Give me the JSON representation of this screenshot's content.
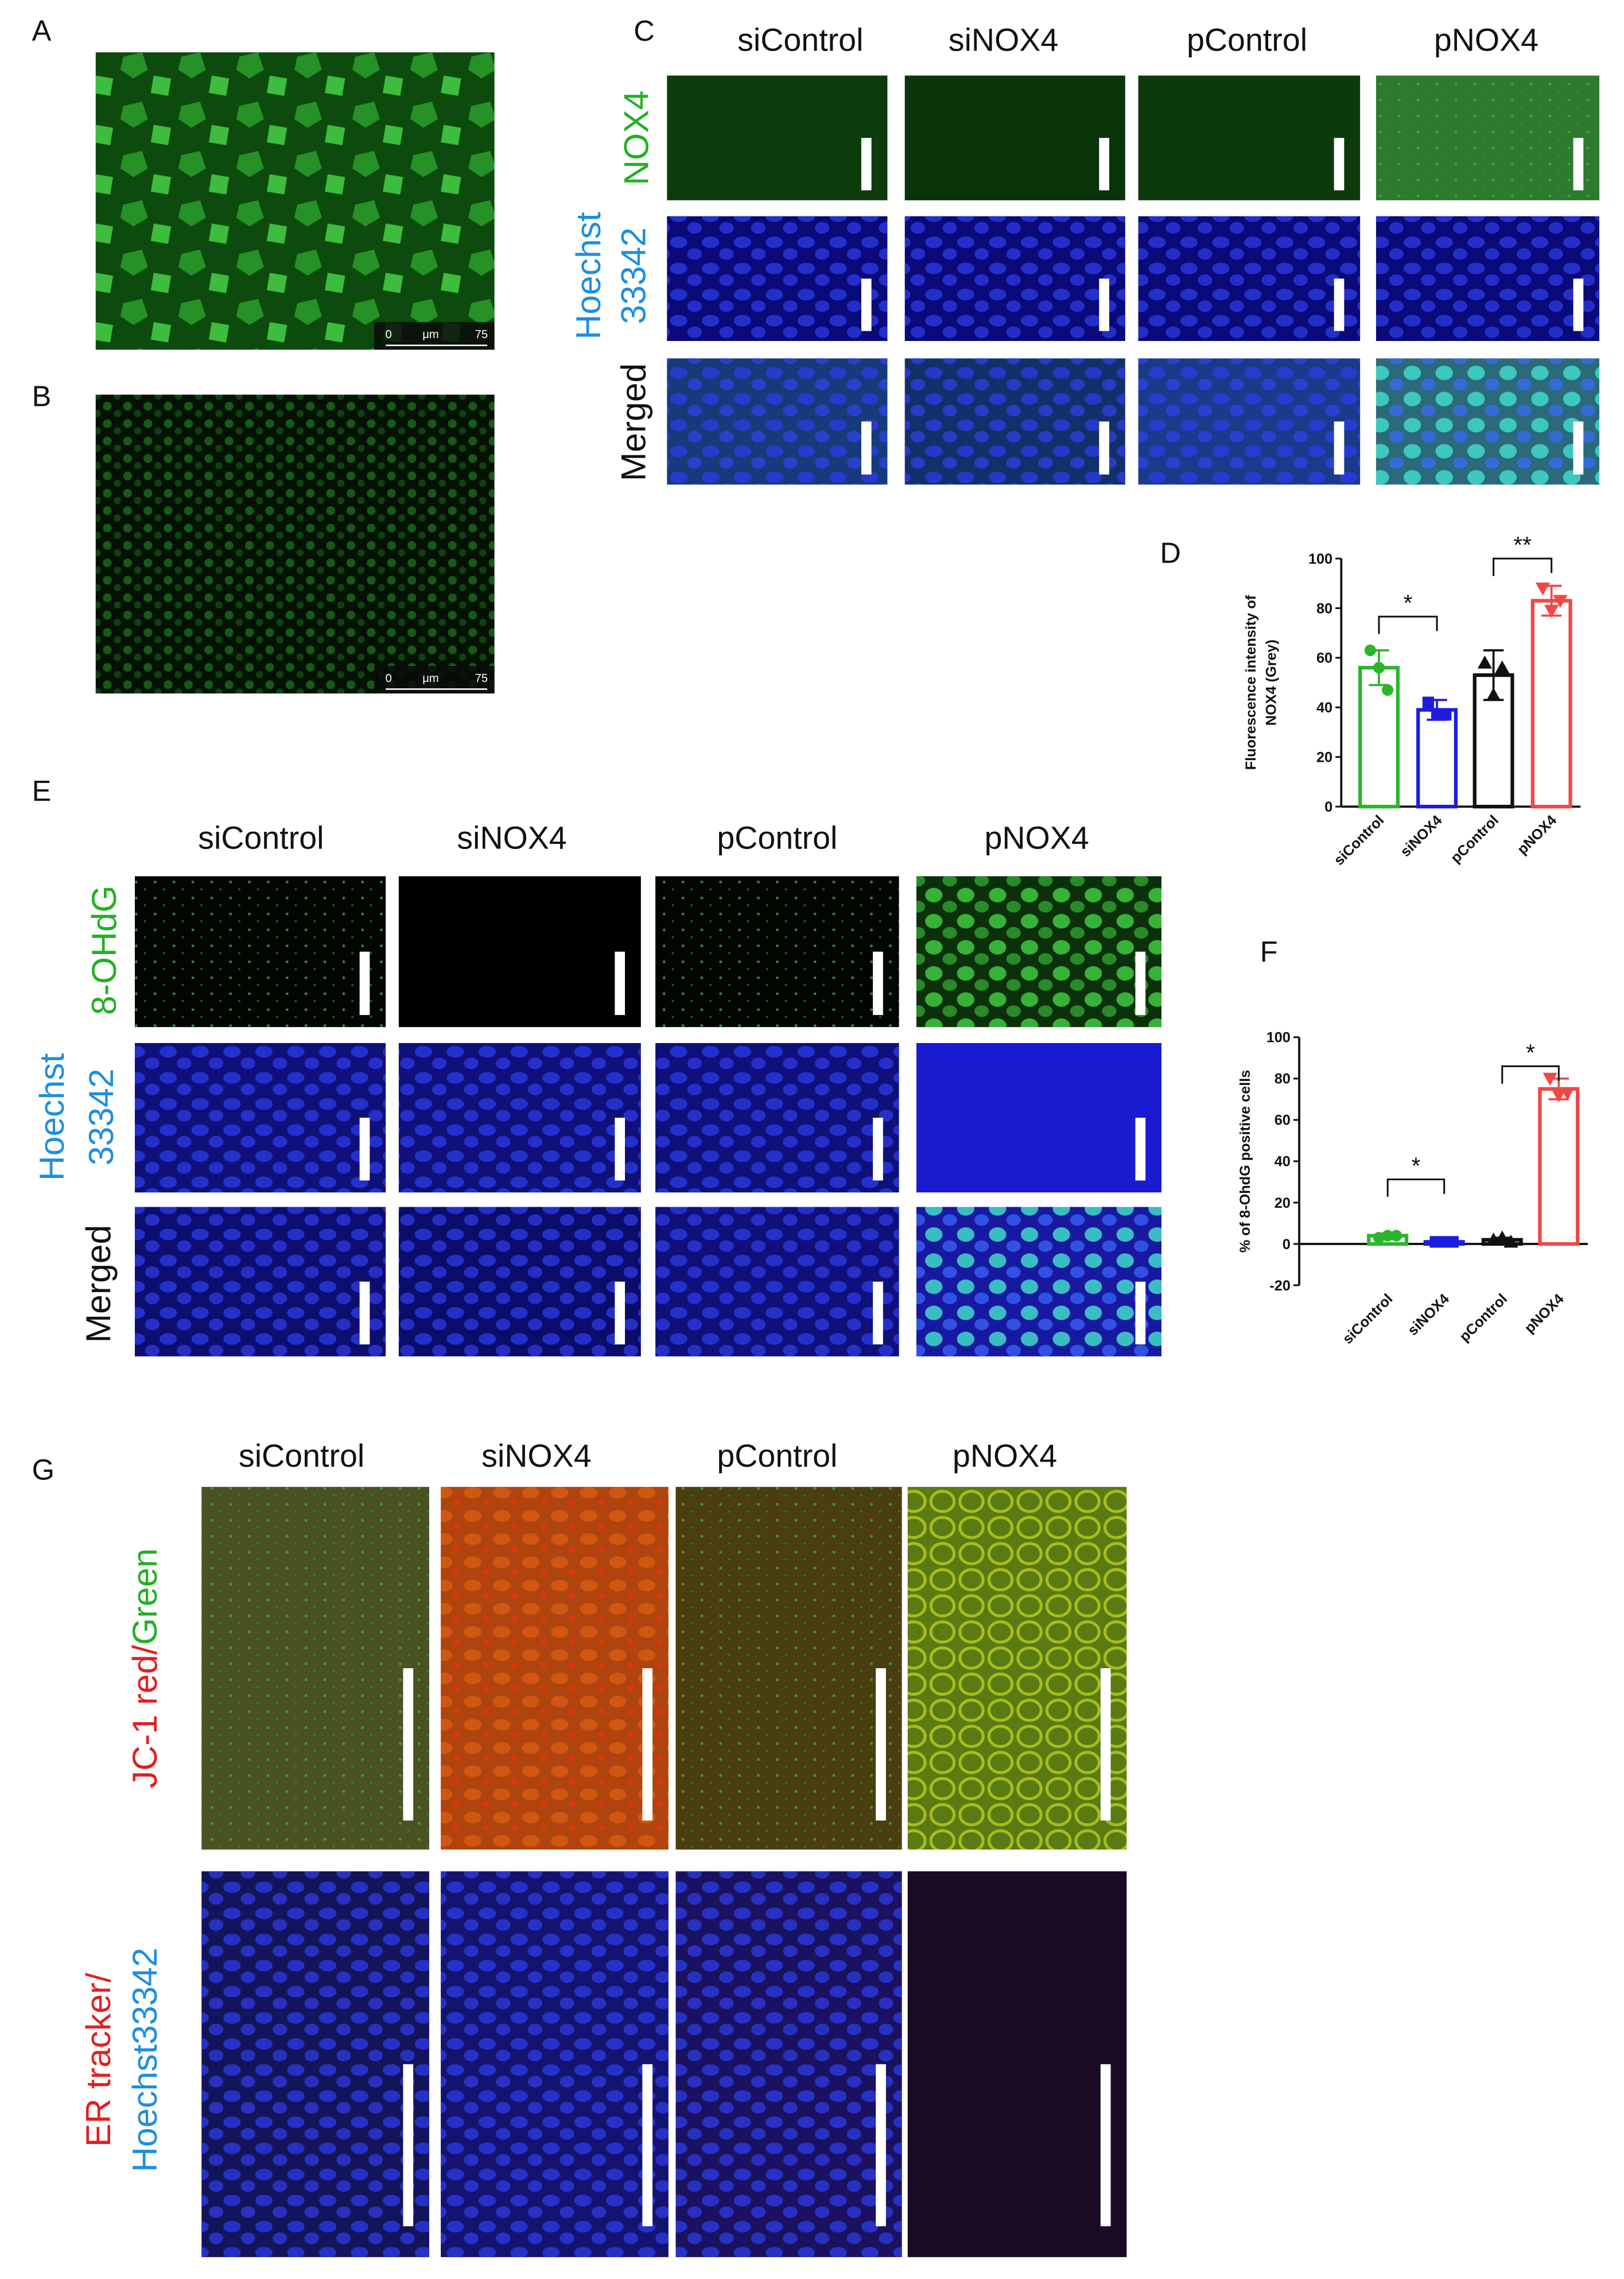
{
  "figure": {
    "panel_letters": [
      "A",
      "B",
      "C",
      "D",
      "E",
      "F",
      "G"
    ],
    "panel_a": {
      "scale_label": [
        "0",
        "μm",
        "75"
      ]
    },
    "panel_b": {
      "scale_label": [
        "0",
        "μm",
        "75"
      ]
    },
    "panel_c": {
      "columns": [
        "siControl",
        "siNOX4",
        "pControl",
        "pNOX4"
      ],
      "rows": [
        [
          "NOX4"
        ],
        [
          "Hoechst",
          "33342"
        ],
        [
          "Merged"
        ]
      ]
    },
    "panel_e": {
      "columns": [
        "siControl",
        "siNOX4",
        "pControl",
        "pNOX4"
      ],
      "rows": [
        [
          "8-OHdG"
        ],
        [
          "Hoechst",
          "33342"
        ],
        [
          "Merged"
        ]
      ]
    },
    "panel_g": {
      "columns": [
        "siControl",
        "siNOX4",
        "pControl",
        "pNOX4"
      ],
      "rows": [
        [
          "JC-1 red/",
          "Green"
        ],
        [
          "ER tracker/",
          "Hoechst33342"
        ]
      ]
    }
  },
  "chart_data": [
    {
      "type": "bar",
      "ylabel": [
        "Fluorescence intensity of",
        "NOX4 (Grey)"
      ],
      "categories": [
        "siControl",
        "siNOX4",
        "pControl",
        "pNOX4"
      ],
      "values": [
        56,
        39,
        53,
        83
      ],
      "errors": [
        7,
        4,
        10,
        6
      ],
      "points": [
        [
          63,
          56,
          47
        ],
        [
          42,
          37,
          37
        ],
        [
          58,
          45,
          56
        ],
        [
          88,
          79,
          83
        ]
      ],
      "markers": [
        "circle",
        "square",
        "triangle-up",
        "triangle-down"
      ],
      "colors": [
        "#2cb52c",
        "#1c1ce0",
        "#111111",
        "#f04848"
      ],
      "annotations": [
        "*",
        "**"
      ],
      "ylim": [
        0,
        100
      ],
      "yticks": [
        0,
        20,
        40,
        60,
        80,
        100
      ]
    },
    {
      "type": "bar",
      "ylabel": "% of 8-OhdG positive cells",
      "categories": [
        "siControl",
        "siNOX4",
        "pControl",
        "pNOX4"
      ],
      "values": [
        4,
        1,
        2,
        75
      ],
      "errors": [
        1,
        1,
        1,
        5
      ],
      "points": [
        [
          3,
          4,
          4
        ],
        [
          1,
          1,
          1
        ],
        [
          2,
          3,
          1
        ],
        [
          80,
          72,
          73
        ]
      ],
      "markers": [
        "circle",
        "square",
        "triangle-up",
        "triangle-down"
      ],
      "colors": [
        "#2cb52c",
        "#1c1ce0",
        "#111111",
        "#f04848"
      ],
      "annotations": [
        "*",
        "*"
      ],
      "ylim": [
        -20,
        100
      ],
      "yticks": [
        -20,
        0,
        20,
        40,
        60,
        80,
        100
      ]
    }
  ]
}
